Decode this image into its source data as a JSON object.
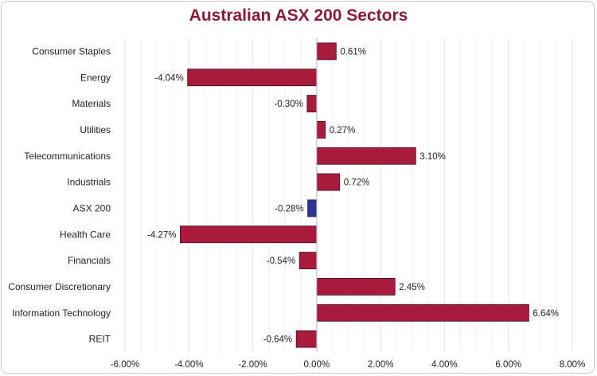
{
  "chart_data": {
    "type": "bar",
    "orientation": "horizontal",
    "title": "Australian ASX 200 Sectors",
    "categories": [
      "Consumer Staples",
      "Energy",
      "Materials",
      "Utilities",
      "Telecommunications",
      "Industrials",
      "ASX 200",
      "Health Care",
      "Financials",
      "Consumer Discretionary",
      "Information Technology",
      "REIT"
    ],
    "values": [
      0.61,
      -4.04,
      -0.3,
      0.27,
      3.1,
      0.72,
      -0.28,
      -4.27,
      -0.54,
      2.45,
      6.64,
      -0.64
    ],
    "data_labels": [
      "0.61%",
      "-4.04%",
      "-0.30%",
      "0.27%",
      "3.10%",
      "0.72%",
      "-0.28%",
      "-4.27%",
      "-0.54%",
      "2.45%",
      "6.64%",
      "-0.64%"
    ],
    "xlim": [
      -6,
      8
    ],
    "xticks": [
      -6,
      -4,
      -2,
      0,
      2,
      4,
      6,
      8
    ],
    "xtick_labels": [
      "-6.00%",
      "-4.00%",
      "-2.00%",
      "0.00%",
      "2.00%",
      "4.00%",
      "6.00%",
      "8.00%"
    ],
    "xlabel": "",
    "ylabel": "",
    "grid": true,
    "legend": "none",
    "colors": {
      "bar": "#a91b3c",
      "highlight_bar": "#2a3595",
      "highlight_category": "ASX 200",
      "bar_edge": "#3a1020",
      "title": "#8b1a3a",
      "grid": "#e6e6e6"
    }
  }
}
